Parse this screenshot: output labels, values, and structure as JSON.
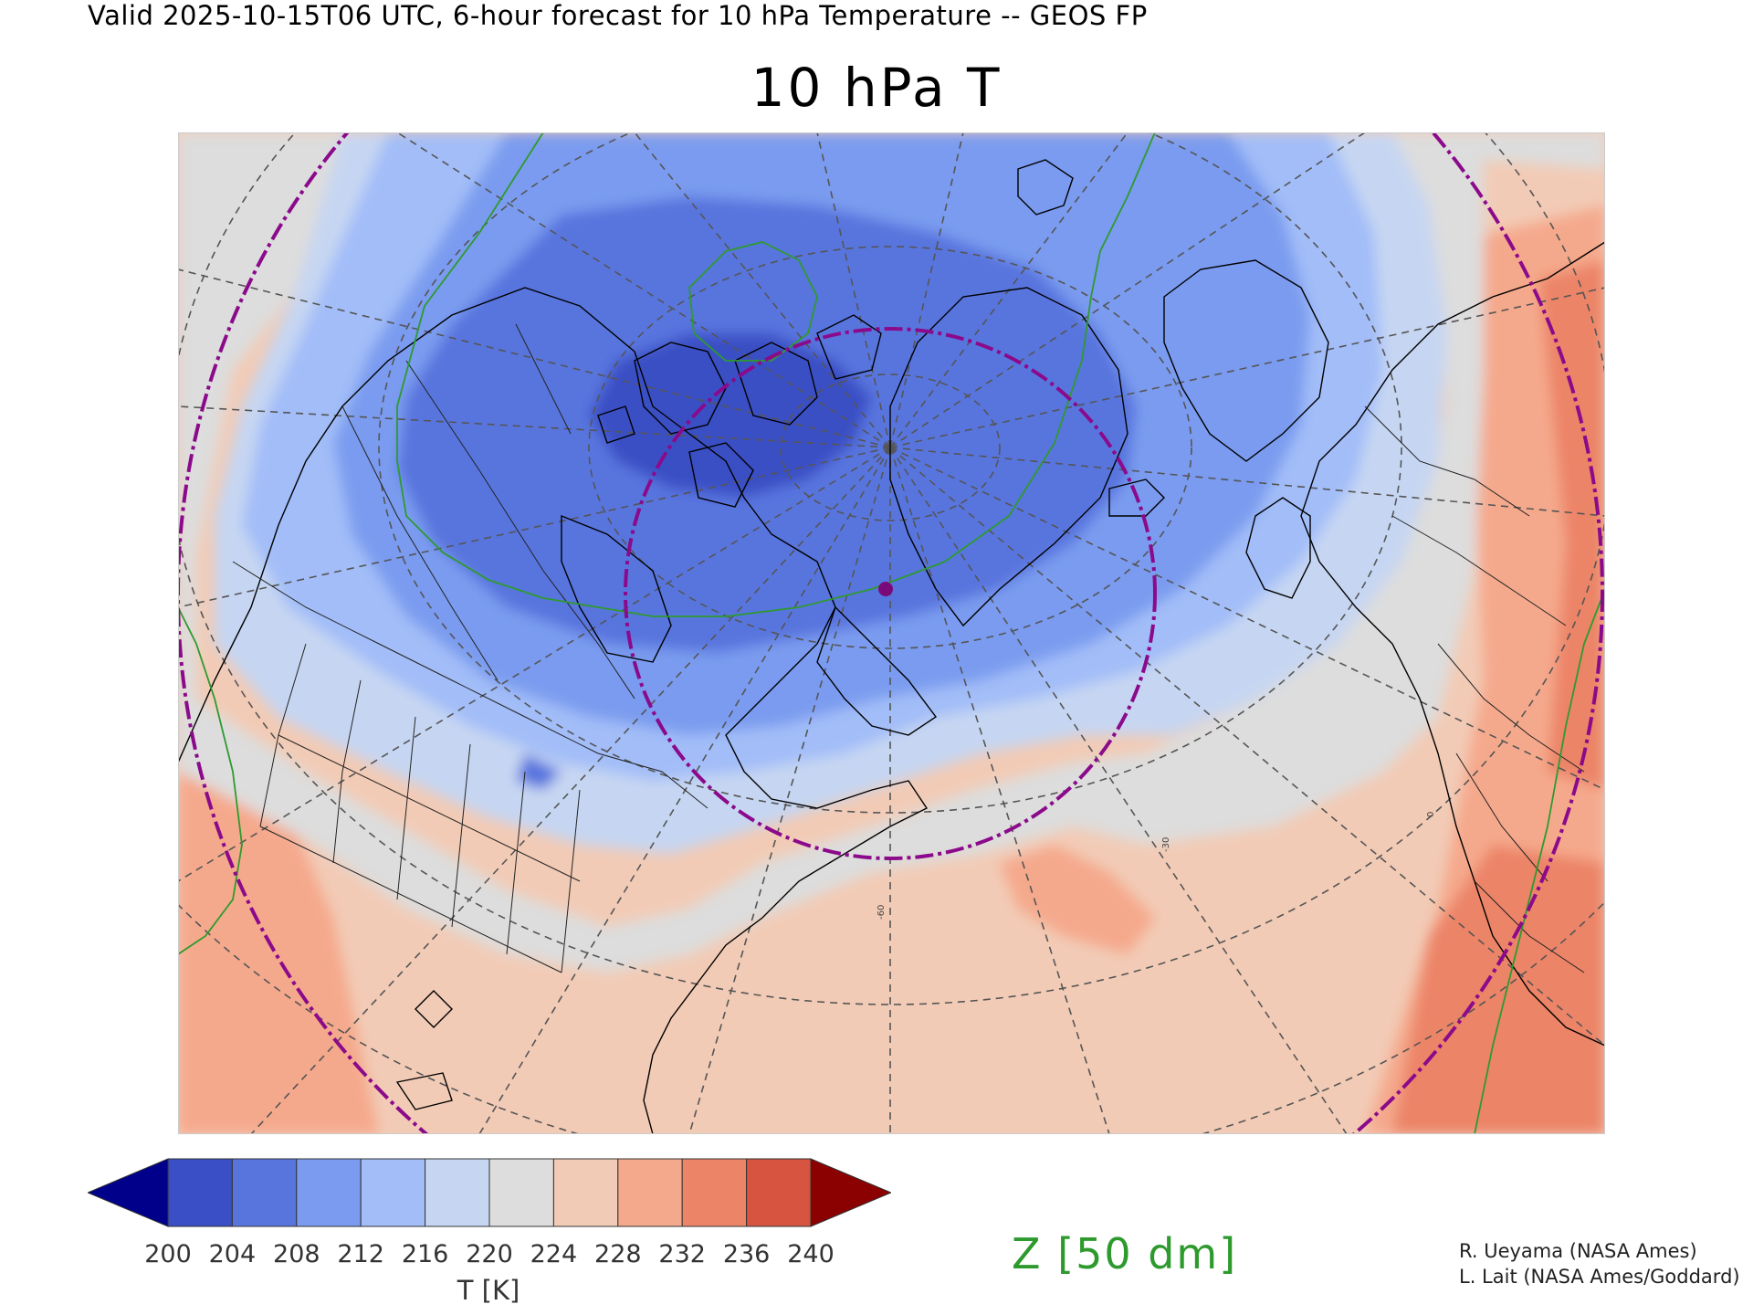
{
  "header": "Valid 2025-10-15T06 UTC, 6-hour forecast for 10 hPa Temperature -- GEOS FP",
  "title": "10 hPa T",
  "colorbar": {
    "units_label": "T [K]",
    "ticks": [
      "200",
      "204",
      "208",
      "212",
      "216",
      "220",
      "224",
      "228",
      "232",
      "236",
      "240"
    ],
    "under_color": "#00008b",
    "over_color": "#8b0000",
    "bin_colors": [
      "#3a4fc5",
      "#5875de",
      "#7a9bef",
      "#a2bdf8",
      "#c6d6f2",
      "#dddddd",
      "#f2cbb6",
      "#f5a98c",
      "#ec8468",
      "#d65440"
    ]
  },
  "contour_key": "Z [50 dm]",
  "map": {
    "field": "10 hPa temperature",
    "projection": "north polar stereographic",
    "contour_color": "#2e9a2e",
    "circle_color": "#8b0a8b",
    "station_marker_color": "#7a0a7a",
    "graticule_labels": [
      "-60",
      "-30",
      "0"
    ]
  },
  "credits": [
    "R. Ueyama (NASA Ames)",
    "L. Lait (NASA Ames/Goddard)"
  ]
}
